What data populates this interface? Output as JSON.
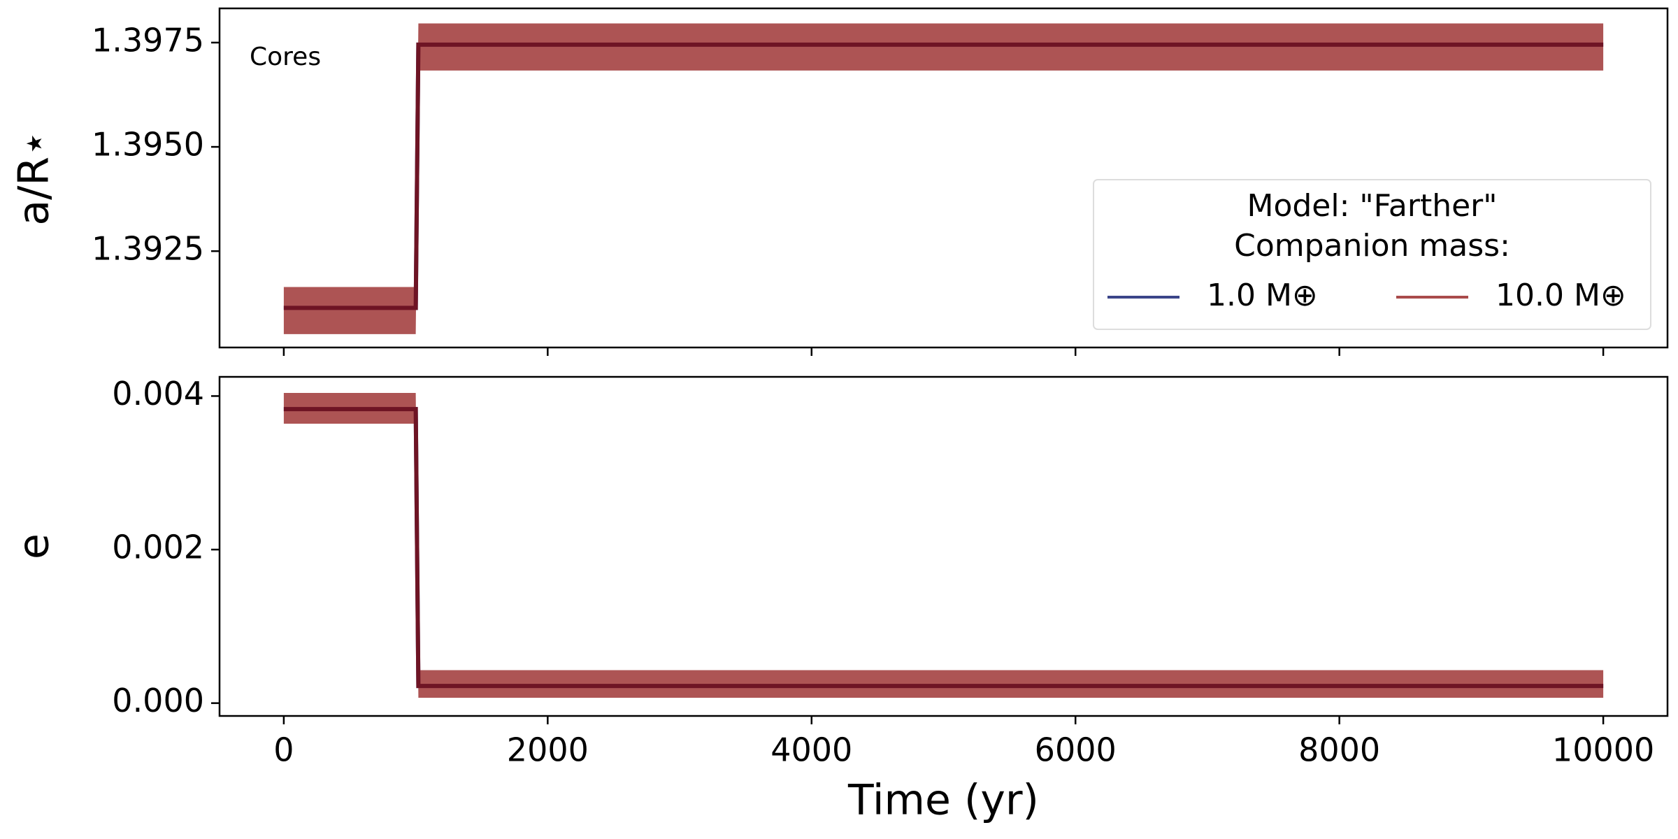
{
  "chart_data": [
    {
      "type": "line",
      "ylabel": "a/R⋆",
      "annotation": "Cores",
      "xlim": [
        -487,
        10487
      ],
      "xticks": [
        0,
        2000,
        4000,
        6000,
        8000,
        10000
      ],
      "ylim": [
        1.39019,
        1.39832
      ],
      "yticks": [
        {
          "value": 1.3925,
          "label": "1.3925"
        },
        {
          "value": 1.395,
          "label": "1.3950"
        },
        {
          "value": 1.3975,
          "label": "1.3975"
        }
      ],
      "x": [
        0,
        1000,
        1020,
        10000
      ],
      "series": [
        {
          "name": "1.0 M⊕",
          "color": "#3b4589",
          "values": [
            1.39114,
            1.39114,
            1.39745,
            1.39745
          ]
        },
        {
          "name": "10.0 M⊕",
          "color": "#a94b4b",
          "line_color": "#6e1424",
          "values": [
            1.39114,
            1.39114,
            1.39745,
            1.39745
          ],
          "band_low": [
            1.39051,
            1.39051,
            1.39683,
            1.39683
          ],
          "band_high": [
            1.39164,
            1.39164,
            1.39796,
            1.39796
          ]
        }
      ],
      "legend": "lower right",
      "legend_title": [
        "Model: \"Farther\"",
        "Companion mass:"
      ]
    },
    {
      "type": "line",
      "ylabel": "e",
      "xlabel": "Time (yr)",
      "xlim": [
        -487,
        10487
      ],
      "xticks": [
        0,
        2000,
        4000,
        6000,
        8000,
        10000
      ],
      "ylim": [
        -0.000167,
        0.00425
      ],
      "yticks": [
        {
          "value": 0,
          "label": "0.000"
        },
        0.002,
        0.004
      ],
      "x": [
        0,
        1000,
        1020,
        10000
      ],
      "series": [
        {
          "color": "#3b4589",
          "values": [
            0.00383,
            0.00383,
            0.000223,
            0.000223
          ]
        },
        {
          "color": "#a94b4b",
          "line_color": "#6e1424",
          "values": [
            0.00383,
            0.00383,
            0.000223,
            0.000223
          ],
          "band_low": [
            0.00364,
            0.00364,
            7e-05,
            7e-05
          ],
          "band_high": [
            0.00404,
            0.00404,
            0.00043,
            0.00043
          ]
        }
      ]
    }
  ]
}
